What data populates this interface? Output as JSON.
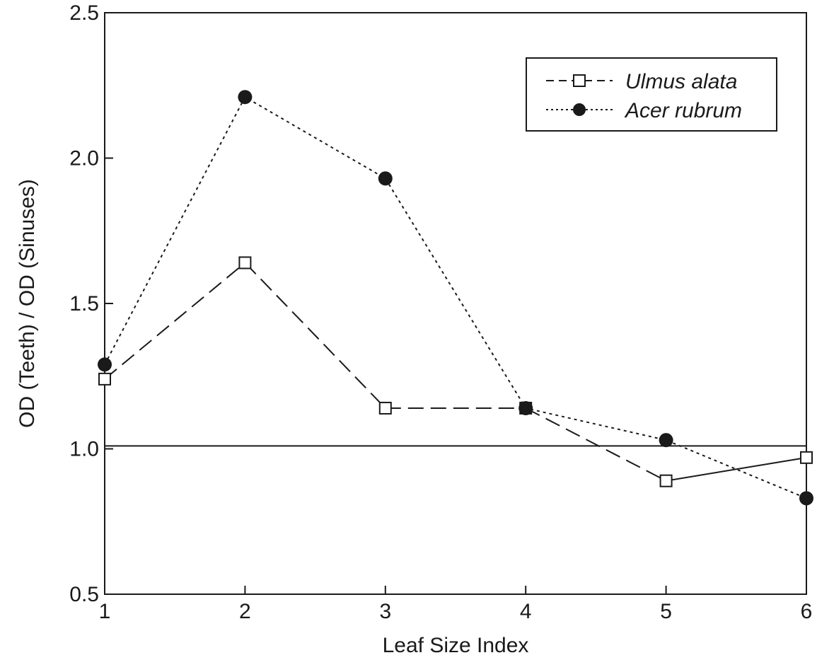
{
  "chart_data": {
    "type": "line",
    "xlabel": "Leaf Size Index",
    "ylabel": "OD (Teeth) / OD (Sinuses)",
    "xlim": [
      1,
      6
    ],
    "ylim": [
      0.5,
      2.5
    ],
    "x_ticks": [
      "1",
      "2",
      "3",
      "4",
      "5",
      "6"
    ],
    "y_ticks": [
      "0.5",
      "1.0",
      "1.5",
      "2.0",
      "2.5"
    ],
    "reference_line": 1.01,
    "legend_position": "top-right",
    "grid": false,
    "series": [
      {
        "name": "Ulmus alata",
        "marker": "open-square",
        "line_style": "dashed (solid between 5 and 6)",
        "x": [
          1,
          2,
          3,
          4,
          5,
          6
        ],
        "y": [
          1.24,
          1.64,
          1.14,
          1.14,
          0.89,
          0.97
        ]
      },
      {
        "name": "Acer rubrum",
        "marker": "filled-circle",
        "line_style": "dotted",
        "x": [
          1,
          2,
          3,
          4,
          5,
          6
        ],
        "y": [
          1.29,
          2.21,
          1.93,
          1.14,
          1.03,
          0.83
        ]
      }
    ]
  },
  "colors": {
    "ink": "#1a1a1a",
    "background": "#ffffff"
  }
}
